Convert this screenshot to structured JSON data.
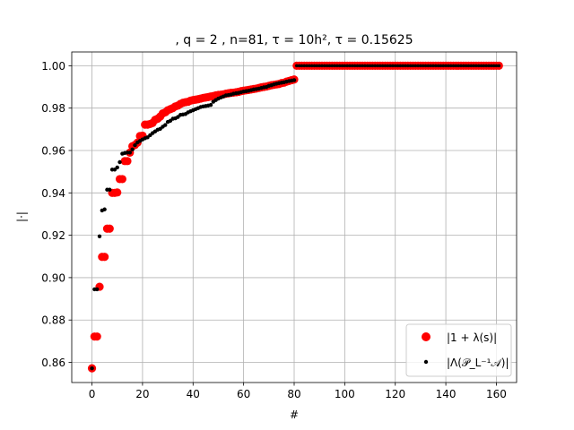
{
  "chart_data": {
    "type": "scatter",
    "title": ", q = 2 , n=81, τ = 10h², τ = 0.15625",
    "xlabel": "#",
    "ylabel": "|·|",
    "xlim": [
      -8,
      168
    ],
    "ylim": [
      0.8505,
      1.0065
    ],
    "xticks": [
      0,
      20,
      40,
      60,
      80,
      100,
      120,
      140,
      160
    ],
    "yticks": [
      0.86,
      0.88,
      0.9,
      0.92,
      0.94,
      0.96,
      0.98,
      1.0
    ],
    "xtick_labels": [
      "0",
      "20",
      "40",
      "60",
      "80",
      "100",
      "120",
      "140",
      "160"
    ],
    "ytick_labels": [
      "0.86",
      "0.88",
      "0.90",
      "0.92",
      "0.94",
      "0.96",
      "0.98",
      "1.00"
    ],
    "grid": true,
    "legend_position": "lower-right",
    "series": [
      {
        "name": "|1 + λ(s)|",
        "color": "#ff0000",
        "marker": "large-circle",
        "x": [
          0,
          1,
          2,
          3,
          4,
          5,
          6,
          7,
          8,
          9,
          10,
          11,
          12,
          13,
          14,
          15,
          16,
          17,
          18,
          19,
          20,
          21,
          22,
          23,
          24,
          25,
          26,
          27,
          28,
          29,
          30,
          31,
          32,
          33,
          34,
          35,
          36,
          37,
          38,
          39,
          40,
          41,
          42,
          43,
          44,
          45,
          46,
          47,
          48,
          49,
          50,
          51,
          52,
          53,
          54,
          55,
          56,
          57,
          58,
          59,
          60,
          61,
          62,
          63,
          64,
          65,
          66,
          67,
          68,
          69,
          70,
          71,
          72,
          73,
          74,
          75,
          76,
          77,
          78,
          79,
          80
        ],
        "values": [
          0.8572,
          0.8722,
          0.8722,
          0.8957,
          0.9098,
          0.9098,
          0.9231,
          0.9231,
          0.94,
          0.94,
          0.9402,
          0.9465,
          0.9465,
          0.955,
          0.955,
          0.959,
          0.962,
          0.9626,
          0.9637,
          0.9668,
          0.967,
          0.9722,
          0.9722,
          0.9725,
          0.973,
          0.9745,
          0.975,
          0.976,
          0.9775,
          0.978,
          0.979,
          0.9795,
          0.98,
          0.9808,
          0.9812,
          0.982,
          0.9825,
          0.9828,
          0.983,
          0.9835,
          0.9838,
          0.984,
          0.9842,
          0.9845,
          0.9848,
          0.985,
          0.9852,
          0.9855,
          0.9857,
          0.986,
          0.9862,
          0.9863,
          0.9865,
          0.9868,
          0.987,
          0.9872,
          0.9873,
          0.9875,
          0.9877,
          0.988,
          0.9882,
          0.9884,
          0.9886,
          0.9888,
          0.989,
          0.9892,
          0.9895,
          0.9898,
          0.99,
          0.9902,
          0.9905,
          0.9908,
          0.991,
          0.9912,
          0.9914,
          0.9918,
          0.992,
          0.9925,
          0.9928,
          0.9932,
          0.9935
        ]
      },
      {
        "name": "|Λ(𝒫_L⁻¹𝒜)|",
        "color": "#000000",
        "marker": "small-dot",
        "x": [
          0,
          1,
          2,
          3,
          4,
          5,
          6,
          7,
          8,
          9,
          10,
          11,
          12,
          13,
          14,
          15,
          16,
          17,
          18,
          19,
          20,
          21,
          22,
          23,
          24,
          25,
          26,
          27,
          28,
          29,
          30,
          31,
          32,
          33,
          34,
          35,
          36,
          37,
          38,
          39,
          40,
          41,
          42,
          43,
          44,
          45,
          46,
          47,
          48,
          49,
          50,
          51,
          52,
          53,
          54,
          55,
          56,
          57,
          58,
          59,
          60,
          61,
          62,
          63,
          64,
          65,
          66,
          67,
          68,
          69,
          70,
          71,
          72,
          73,
          74,
          75,
          76,
          77,
          78,
          79,
          80
        ],
        "values": [
          0.8572,
          0.8945,
          0.8945,
          0.9195,
          0.9317,
          0.9322,
          0.9415,
          0.9415,
          0.951,
          0.951,
          0.952,
          0.9545,
          0.9585,
          0.9588,
          0.959,
          0.959,
          0.9605,
          0.9625,
          0.9638,
          0.9645,
          0.9652,
          0.9658,
          0.9662,
          0.9672,
          0.9682,
          0.969,
          0.9698,
          0.9702,
          0.9712,
          0.972,
          0.9735,
          0.974,
          0.975,
          0.9752,
          0.9758,
          0.9768,
          0.977,
          0.9772,
          0.978,
          0.9785,
          0.979,
          0.9795,
          0.98,
          0.9805,
          0.9808,
          0.981,
          0.9812,
          0.9815,
          0.983,
          0.9838,
          0.9845,
          0.985,
          0.9855,
          0.986,
          0.9862,
          0.9864,
          0.9868,
          0.987,
          0.9872,
          0.9875,
          0.9878,
          0.988,
          0.9882,
          0.9885,
          0.9888,
          0.989,
          0.9892,
          0.9895,
          0.9898,
          0.99,
          0.9905,
          0.9908,
          0.9912,
          0.9915,
          0.9918,
          0.992,
          0.9922,
          0.9925,
          0.9928,
          0.993,
          0.9932
        ]
      },
      {
        "name": "",
        "color": "#ff0000",
        "marker": "large-circle-with-small-dot",
        "x_range": [
          81,
          161
        ],
        "value": 1.0
      }
    ]
  }
}
